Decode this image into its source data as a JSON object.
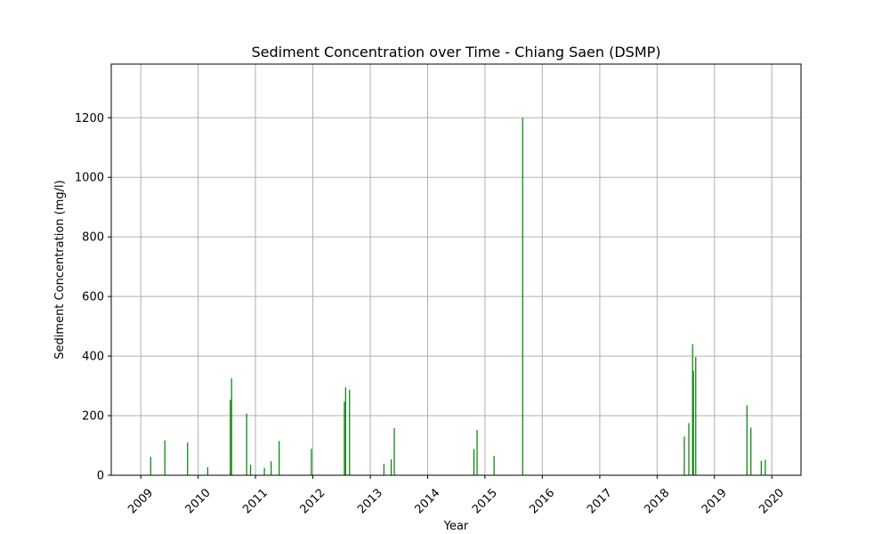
{
  "chart_data": {
    "type": "bar",
    "title": "Sediment Concentration over Time - Chiang Saen (DSMP)",
    "xlabel": "Year",
    "ylabel": "Sediment Concentration (mg/l)",
    "xlim": [
      "2008-06-27",
      "2020-07-05"
    ],
    "ylim": [
      0,
      1380
    ],
    "x_ticks": [
      "2009",
      "2010",
      "2011",
      "2012",
      "2013",
      "2014",
      "2015",
      "2016",
      "2017",
      "2018",
      "2019",
      "2020"
    ],
    "y_ticks": [
      0,
      200,
      400,
      600,
      800,
      1000,
      1200
    ],
    "grid": true,
    "bar_color": "#008000",
    "series": [
      {
        "x": [
          "2009-03-05",
          "2009-06-03",
          "2009-10-26",
          "2010-03-03",
          "2010-07-25",
          "2010-08-02",
          "2010-11-06",
          "2010-12-01",
          "2011-02-27",
          "2011-04-11",
          "2011-06-01",
          "2011-12-23",
          "2012-07-20",
          "2012-07-28",
          "2012-08-22",
          "2013-03-29",
          "2013-05-14",
          "2013-06-03",
          "2014-10-23",
          "2014-11-12",
          "2015-02-28",
          "2015-08-29",
          "2018-06-23",
          "2018-07-22",
          "2018-08-15",
          "2018-08-20",
          "2018-09-04",
          "2019-07-27",
          "2019-08-21",
          "2019-10-26",
          "2019-11-21"
        ],
        "values": [
          62,
          117,
          110,
          27,
          253,
          325,
          207,
          35,
          25,
          47,
          115,
          89,
          247,
          295,
          287,
          38,
          53,
          158,
          88,
          152,
          65,
          1200,
          130,
          175,
          440,
          350,
          397,
          235,
          160,
          48,
          52
        ]
      }
    ]
  }
}
